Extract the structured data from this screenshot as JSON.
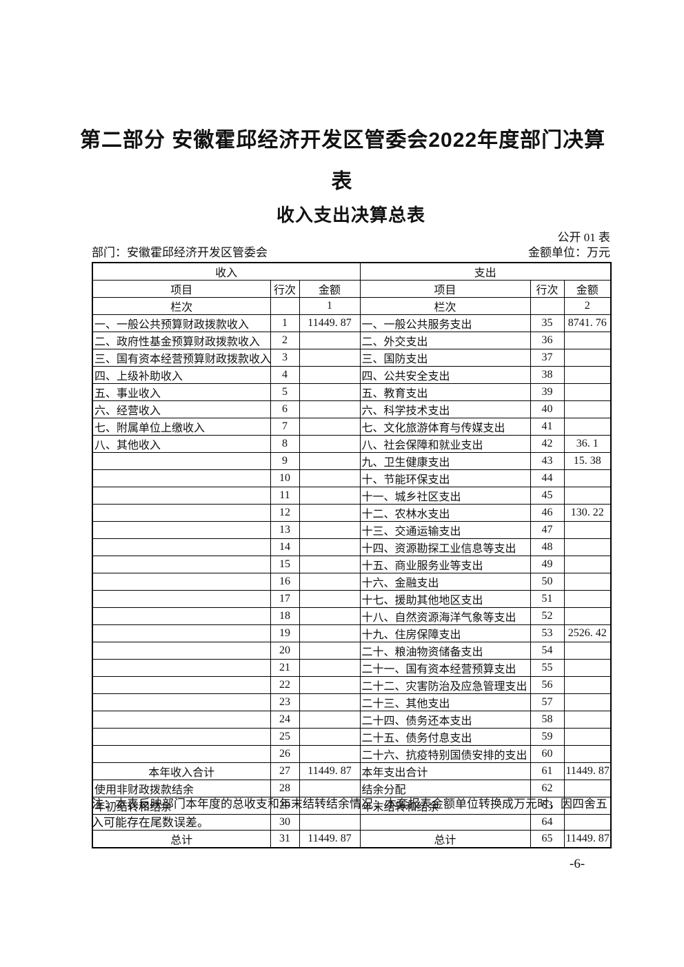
{
  "page": {
    "title_line1": "第二部分 安徽霍邱经济开发区管委会2022年度部门决算",
    "title_line2": "表",
    "subtitle": "收入支出决算总表",
    "table_code": "公开 01 表",
    "department_label": "部门：安徽霍邱经济开发区管委会",
    "unit_label": "金额单位：万元",
    "note": "注：本表反映部门本年度的总收支和年末结转结余情况；本套报表金额单位转换成万元时，因四舍五入可能存在尾数误差。",
    "page_number": "-6-"
  },
  "table": {
    "income_header": "收入",
    "expense_header": "支出",
    "col_headers": {
      "item": "项目",
      "row_no": "行次",
      "amount": "金额"
    },
    "column_row_label": "栏次",
    "income_col_no": "1",
    "expense_col_no": "2",
    "rows": [
      {
        "l": [
          "一、一般公共预算财政拨款收入",
          "1",
          "11449. 87"
        ],
        "r": [
          "一、一般公共服务支出",
          "35",
          "8741. 76"
        ]
      },
      {
        "l": [
          "二、政府性基金预算财政拨款收入",
          "2",
          ""
        ],
        "r": [
          "二、外交支出",
          "36",
          ""
        ]
      },
      {
        "l": [
          "三、国有资本经营预算财政拨款收入",
          "3",
          ""
        ],
        "r": [
          "三、国防支出",
          "37",
          ""
        ]
      },
      {
        "l": [
          "四、上级补助收入",
          "4",
          ""
        ],
        "r": [
          "四、公共安全支出",
          "38",
          ""
        ]
      },
      {
        "l": [
          "五、事业收入",
          "5",
          ""
        ],
        "r": [
          "五、教育支出",
          "39",
          ""
        ]
      },
      {
        "l": [
          "六、经营收入",
          "6",
          ""
        ],
        "r": [
          "六、科学技术支出",
          "40",
          ""
        ]
      },
      {
        "l": [
          "七、附属单位上缴收入",
          "7",
          ""
        ],
        "r": [
          "七、文化旅游体育与传媒支出",
          "41",
          ""
        ]
      },
      {
        "l": [
          "八、其他收入",
          "8",
          ""
        ],
        "r": [
          "八、社会保障和就业支出",
          "42",
          "36. 1"
        ]
      },
      {
        "l": [
          "",
          "9",
          ""
        ],
        "r": [
          "九、卫生健康支出",
          "43",
          "15. 38"
        ]
      },
      {
        "l": [
          "",
          "10",
          ""
        ],
        "r": [
          "十、节能环保支出",
          "44",
          ""
        ]
      },
      {
        "l": [
          "",
          "11",
          ""
        ],
        "r": [
          "十一、城乡社区支出",
          "45",
          ""
        ]
      },
      {
        "l": [
          "",
          "12",
          ""
        ],
        "r": [
          "十二、农林水支出",
          "46",
          "130. 22"
        ]
      },
      {
        "l": [
          "",
          "13",
          ""
        ],
        "r": [
          "十三、交通运输支出",
          "47",
          ""
        ]
      },
      {
        "l": [
          "",
          "14",
          ""
        ],
        "r": [
          "十四、资源勘探工业信息等支出",
          "48",
          ""
        ]
      },
      {
        "l": [
          "",
          "15",
          ""
        ],
        "r": [
          "十五、商业服务业等支出",
          "49",
          ""
        ]
      },
      {
        "l": [
          "",
          "16",
          ""
        ],
        "r": [
          "十六、金融支出",
          "50",
          ""
        ]
      },
      {
        "l": [
          "",
          "17",
          ""
        ],
        "r": [
          "十七、援助其他地区支出",
          "51",
          ""
        ]
      },
      {
        "l": [
          "",
          "18",
          ""
        ],
        "r": [
          "十八、自然资源海洋气象等支出",
          "52",
          ""
        ]
      },
      {
        "l": [
          "",
          "19",
          ""
        ],
        "r": [
          "十九、住房保障支出",
          "53",
          "2526. 42"
        ]
      },
      {
        "l": [
          "",
          "20",
          ""
        ],
        "r": [
          "二十、粮油物资储备支出",
          "54",
          ""
        ]
      },
      {
        "l": [
          "",
          "21",
          ""
        ],
        "r": [
          "二十一、国有资本经营预算支出",
          "55",
          ""
        ]
      },
      {
        "l": [
          "",
          "22",
          ""
        ],
        "r": [
          "二十二、灾害防治及应急管理支出",
          "56",
          ""
        ]
      },
      {
        "l": [
          "",
          "23",
          ""
        ],
        "r": [
          "二十三、其他支出",
          "57",
          ""
        ]
      },
      {
        "l": [
          "",
          "24",
          ""
        ],
        "r": [
          "二十四、债务还本支出",
          "58",
          ""
        ]
      },
      {
        "l": [
          "",
          "25",
          ""
        ],
        "r": [
          "二十五、债务付息支出",
          "59",
          ""
        ]
      },
      {
        "l": [
          "",
          "26",
          ""
        ],
        "r": [
          "二十六、抗疫特别国债安排的支出",
          "60",
          ""
        ]
      },
      {
        "l": [
          "本年收入合计",
          "27",
          "11449. 87"
        ],
        "r": [
          "本年支出合计",
          "61",
          "11449. 87"
        ],
        "l_style": "total-center",
        "r_style": "total-left"
      },
      {
        "l": [
          "使用非财政拨款结余",
          "28",
          ""
        ],
        "r": [
          "结余分配",
          "62",
          ""
        ]
      },
      {
        "l": [
          "年初结转和结余",
          "29",
          ""
        ],
        "r": [
          "年末结转和结余",
          "63",
          ""
        ]
      },
      {
        "l": [
          "",
          "30",
          ""
        ],
        "r": [
          "",
          "64",
          ""
        ]
      },
      {
        "l": [
          "总计",
          "31",
          "11449. 87"
        ],
        "r": [
          "总计",
          "65",
          "11449. 87"
        ],
        "l_style": "total-center",
        "r_style": "total-center"
      }
    ]
  }
}
